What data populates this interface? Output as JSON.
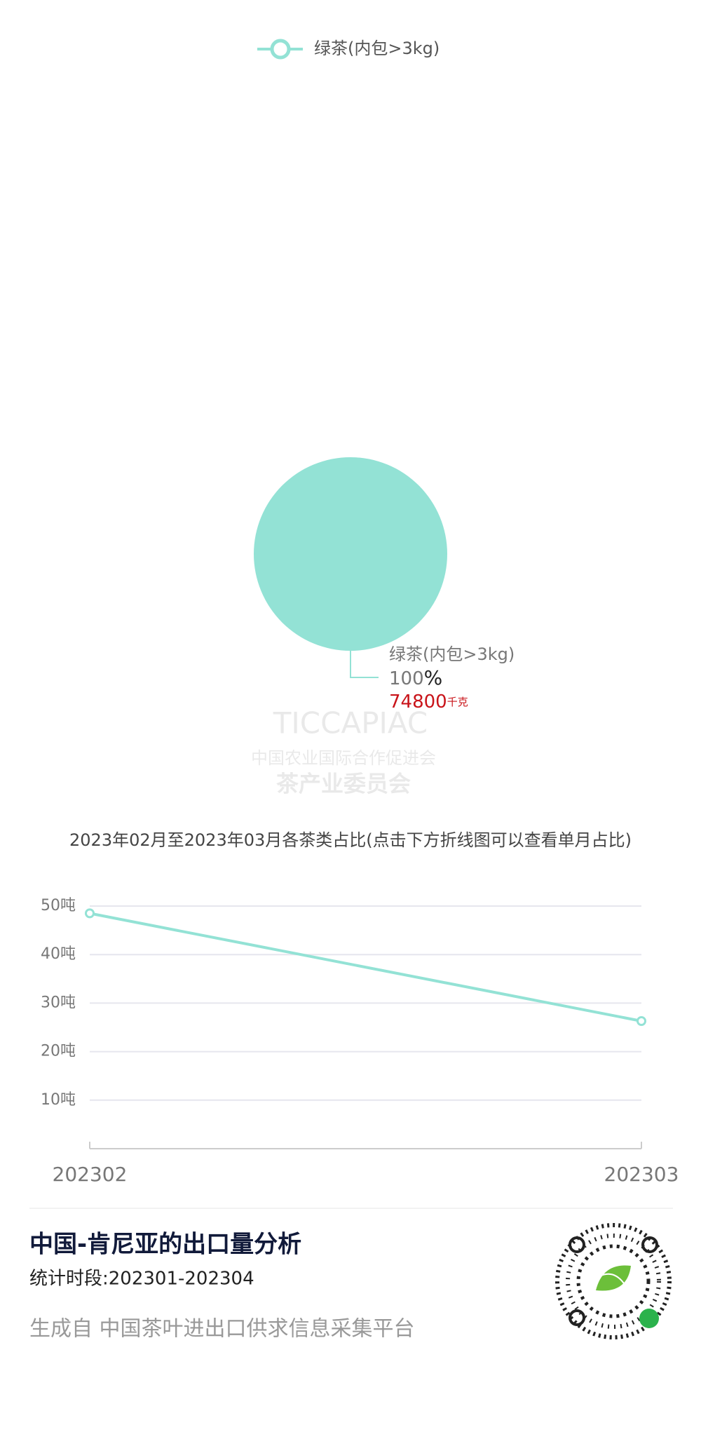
{
  "chart_data": [
    {
      "type": "pie",
      "legend": "top",
      "categories": [
        "绿茶(内包>3kg)"
      ],
      "values": [
        100
      ],
      "colors": [
        "#93e2d5"
      ],
      "value_unit": "%",
      "amounts": [
        74800
      ],
      "amount_unit": "千克"
    },
    {
      "type": "line",
      "title": "2023年02月至2023年03月各茶类占比(点击下方折线图可以查看单月占比)",
      "categories": [
        "202302",
        "202303"
      ],
      "series": [
        {
          "name": "绿茶(内包>3kg)",
          "color": "#93e2d5",
          "values": [
            48.5,
            26.3
          ]
        }
      ],
      "ylim": [
        0,
        50
      ],
      "yticks": [
        {
          "value": 10,
          "label": "10吨"
        },
        {
          "value": 20,
          "label": "20吨"
        },
        {
          "value": 30,
          "label": "30吨"
        },
        {
          "value": 40,
          "label": "40吨"
        },
        {
          "value": 50,
          "label": "50吨"
        }
      ],
      "grid": true
    }
  ],
  "watermark": {
    "brand": "TICCAPIAC",
    "org": "中国农业国际合作促进会",
    "dept": "茶产业委员会"
  },
  "footer": {
    "title": "中国-肯尼亚的出口量分析",
    "period": "统计时段:202301-202304",
    "source": "生成自  中国茶叶进出口供求信息采集平台"
  }
}
